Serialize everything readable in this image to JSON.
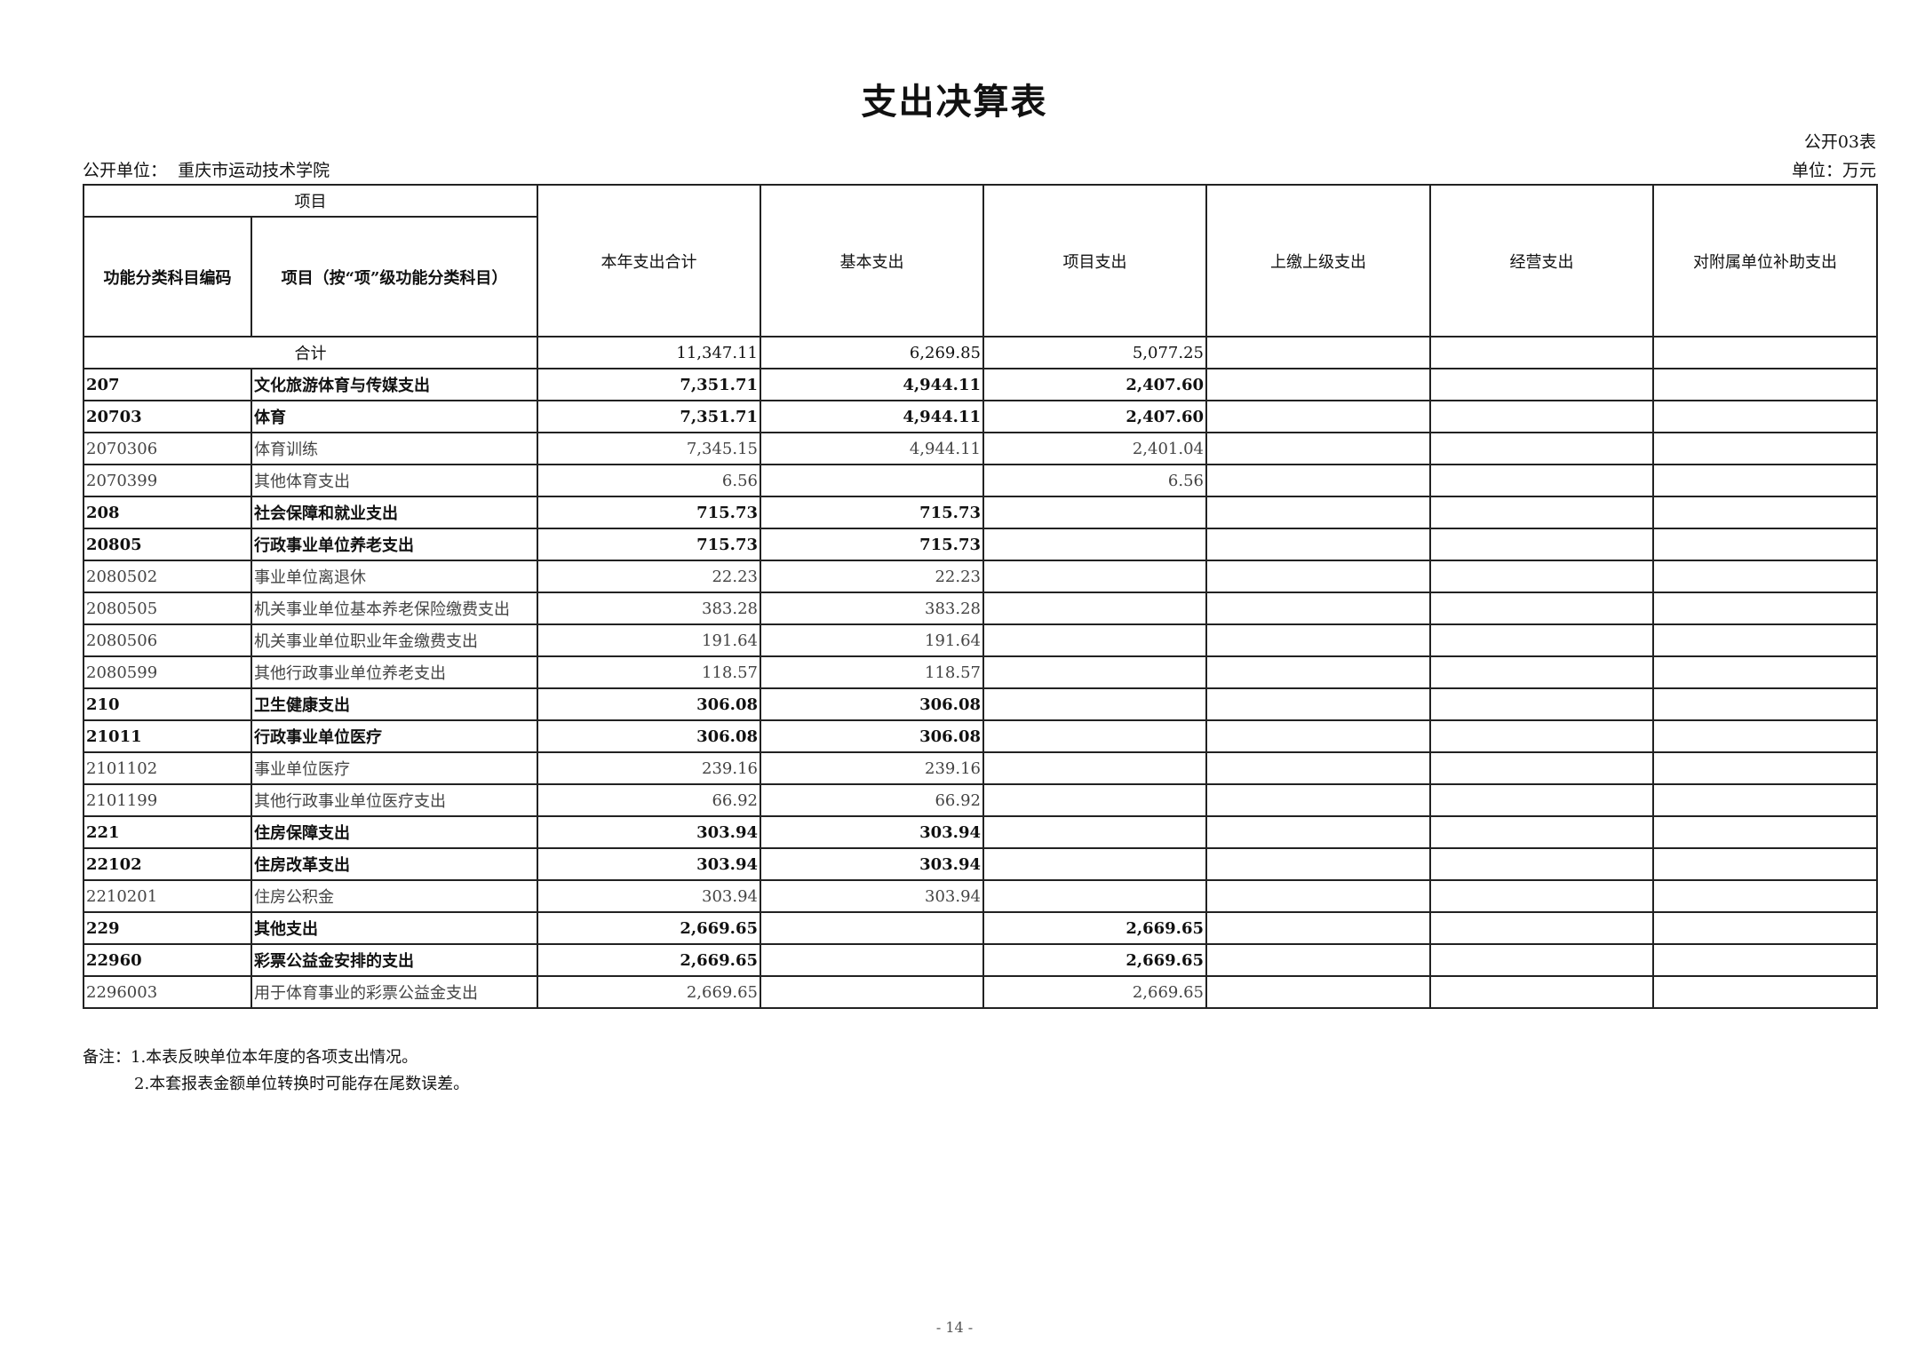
{
  "title": "支出决算表",
  "form_no": "公开03表",
  "unit_label": "公开单位：",
  "unit_name": "重庆市运动技术学院",
  "currency_unit": "单位：万元",
  "headers": {
    "item_group": "项目",
    "code": "功能分类科目编码",
    "name": "项目（按“项”级功能分类科目）",
    "total": "本年支出合计",
    "basic": "基本支出",
    "project": "项目支出",
    "upper": "上缴上级支出",
    "business": "经营支出",
    "subsidy": "对附属单位补助支出"
  },
  "total_row": {
    "label": "合计",
    "total": "11,347.11",
    "basic": "6,269.85",
    "project": "5,077.25",
    "upper": "",
    "business": "",
    "subsidy": ""
  },
  "rows": [
    {
      "level": 1,
      "code": "207",
      "name": "文化旅游体育与传媒支出",
      "total": "7,351.71",
      "basic": "4,944.11",
      "project": "2,407.60"
    },
    {
      "level": 2,
      "code": "20703",
      "name": "体育",
      "total": "7,351.71",
      "basic": "4,944.11",
      "project": "2,407.60"
    },
    {
      "level": 3,
      "code": "2070306",
      "name": "体育训练",
      "total": "7,345.15",
      "basic": "4,944.11",
      "project": "2,401.04"
    },
    {
      "level": 3,
      "code": "2070399",
      "name": "其他体育支出",
      "total": "6.56",
      "basic": "",
      "project": "6.56"
    },
    {
      "level": 1,
      "code": "208",
      "name": "社会保障和就业支出",
      "total": "715.73",
      "basic": "715.73",
      "project": ""
    },
    {
      "level": 2,
      "code": "20805",
      "name": "行政事业单位养老支出",
      "total": "715.73",
      "basic": "715.73",
      "project": ""
    },
    {
      "level": 3,
      "code": "2080502",
      "name": "事业单位离退休",
      "total": "22.23",
      "basic": "22.23",
      "project": ""
    },
    {
      "level": 3,
      "code": "2080505",
      "name": "机关事业单位基本养老保险缴费支出",
      "total": "383.28",
      "basic": "383.28",
      "project": ""
    },
    {
      "level": 3,
      "code": "2080506",
      "name": "机关事业单位职业年金缴费支出",
      "total": "191.64",
      "basic": "191.64",
      "project": ""
    },
    {
      "level": 3,
      "code": "2080599",
      "name": "其他行政事业单位养老支出",
      "total": "118.57",
      "basic": "118.57",
      "project": ""
    },
    {
      "level": 1,
      "code": "210",
      "name": "卫生健康支出",
      "total": "306.08",
      "basic": "306.08",
      "project": ""
    },
    {
      "level": 2,
      "code": "21011",
      "name": "行政事业单位医疗",
      "total": "306.08",
      "basic": "306.08",
      "project": ""
    },
    {
      "level": 3,
      "code": "2101102",
      "name": "事业单位医疗",
      "total": "239.16",
      "basic": "239.16",
      "project": ""
    },
    {
      "level": 3,
      "code": "2101199",
      "name": "其他行政事业单位医疗支出",
      "total": "66.92",
      "basic": "66.92",
      "project": ""
    },
    {
      "level": 1,
      "code": "221",
      "name": "住房保障支出",
      "total": "303.94",
      "basic": "303.94",
      "project": ""
    },
    {
      "level": 2,
      "code": "22102",
      "name": "住房改革支出",
      "total": "303.94",
      "basic": "303.94",
      "project": ""
    },
    {
      "level": 3,
      "code": "2210201",
      "name": "住房公积金",
      "total": "303.94",
      "basic": "303.94",
      "project": ""
    },
    {
      "level": 1,
      "code": "229",
      "name": "其他支出",
      "total": "2,669.65",
      "basic": "",
      "project": "2,669.65"
    },
    {
      "level": 2,
      "code": "22960",
      "name": "彩票公益金安排的支出",
      "total": "2,669.65",
      "basic": "",
      "project": "2,669.65"
    },
    {
      "level": 3,
      "code": "2296003",
      "name": "用于体育事业的彩票公益金支出",
      "total": "2,669.65",
      "basic": "",
      "project": "2,669.65"
    }
  ],
  "notes": [
    "备注：1.本表反映单位本年度的各项支出情况。",
    "2.本套报表金额单位转换时可能存在尾数误差。"
  ],
  "page_number": "- 14 -"
}
